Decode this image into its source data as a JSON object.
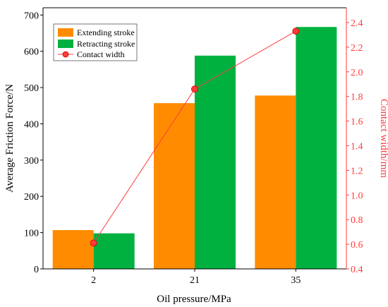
{
  "chart_data": {
    "type": "bar",
    "title": "",
    "xlabel": "Oil pressure/MPa",
    "ylabel": "Average Friction Force/N",
    "ylabel_right": "Contact width/mm",
    "categories": [
      "2",
      "21",
      "35"
    ],
    "series": [
      {
        "name": "Extending stroke",
        "type": "bar",
        "axis": "left",
        "color": "#ff8c00",
        "values": [
          107,
          457,
          478
        ]
      },
      {
        "name": "Retracting stroke",
        "type": "bar",
        "axis": "left",
        "color": "#00b140",
        "values": [
          98,
          588,
          667
        ]
      },
      {
        "name": "Contact width",
        "type": "line",
        "axis": "right",
        "color": "#ff3b3b",
        "values": [
          0.61,
          1.86,
          2.33
        ]
      }
    ],
    "ylim": [
      0,
      720
    ],
    "yticks": [
      "0",
      "100",
      "200",
      "300",
      "400",
      "500",
      "600",
      "700"
    ],
    "ylim_right": [
      0.4,
      2.52
    ],
    "yticks_right": [
      "0.4",
      "0.6",
      "0.8",
      "1.0",
      "1.2",
      "1.4",
      "1.6",
      "1.8",
      "2.0",
      "2.2",
      "2.4"
    ],
    "grid": false,
    "legend_position": "top-left"
  }
}
